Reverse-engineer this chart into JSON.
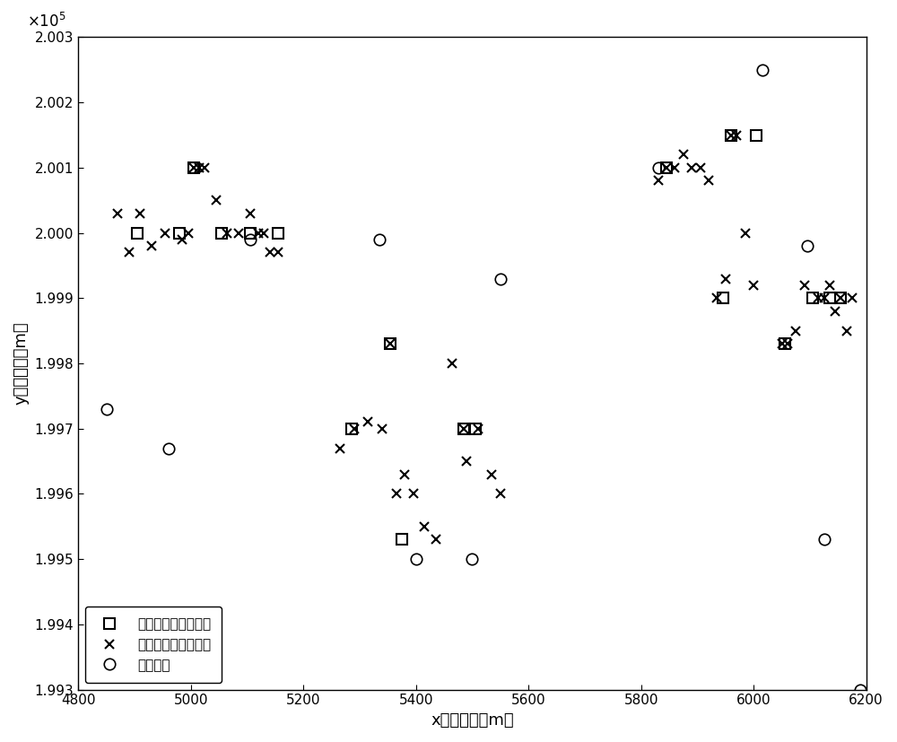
{
  "xlim": [
    4800,
    6200
  ],
  "ylim": [
    199300,
    200300
  ],
  "xlabel": "x方向位置（m）",
  "ylabel": "y方向位置（m）",
  "xticks": [
    4800,
    5000,
    5200,
    5400,
    5600,
    5800,
    6000,
    6200
  ],
  "yticks": [
    199300,
    199400,
    199500,
    199600,
    199700,
    199800,
    199900,
    200000,
    200100,
    200200,
    200300
  ],
  "true_x": [
    4905,
    4980,
    5005,
    5055,
    5105,
    5155,
    5285,
    5355,
    5375,
    5485,
    5505,
    5845,
    5945,
    5960,
    6005,
    6055,
    6105,
    6135,
    6155
  ],
  "true_y": [
    200000,
    200000,
    200100,
    200000,
    200000,
    200000,
    199700,
    199830,
    199530,
    199700,
    199700,
    200100,
    199900,
    200150,
    200150,
    199830,
    199900,
    199900,
    199900
  ],
  "obs_x": [
    4870,
    4890,
    4910,
    4930,
    4955,
    4985,
    4995,
    5005,
    5015,
    5025,
    5045,
    5065,
    5085,
    5105,
    5120,
    5130,
    5140,
    5155,
    5265,
    5290,
    5315,
    5340,
    5355,
    5365,
    5380,
    5395,
    5415,
    5435,
    5465,
    5485,
    5490,
    5510,
    5535,
    5550,
    5830,
    5845,
    5860,
    5875,
    5890,
    5905,
    5920,
    5935,
    5950,
    5960,
    5970,
    5985,
    6000,
    6050,
    6060,
    6075,
    6090,
    6115,
    6125,
    6135,
    6145,
    6155,
    6165,
    6175
  ],
  "obs_y": [
    200030,
    199970,
    200030,
    199980,
    200000,
    199990,
    200000,
    200100,
    200100,
    200100,
    200050,
    200000,
    200000,
    200030,
    200000,
    200000,
    199970,
    199970,
    199670,
    199700,
    199710,
    199700,
    199830,
    199600,
    199630,
    199600,
    199550,
    199530,
    199800,
    199700,
    199650,
    199700,
    199630,
    199600,
    200080,
    200100,
    200100,
    200120,
    200100,
    200100,
    200080,
    199900,
    199930,
    200150,
    200150,
    200000,
    199920,
    199830,
    199830,
    199850,
    199920,
    199900,
    199900,
    199920,
    199880,
    199900,
    199850,
    199900
  ],
  "clutter_x": [
    4850,
    4960,
    5105,
    5335,
    5400,
    5500,
    5550,
    5830,
    6015,
    6095,
    6125,
    6190
  ],
  "clutter_y": [
    199730,
    199670,
    199990,
    199990,
    199500,
    199500,
    199930,
    200100,
    200250,
    199980,
    199530,
    199300
  ],
  "legend_labels": [
    "辐射源目标群真实値",
    "辐射源目标群观测値",
    "杂波信号"
  ]
}
